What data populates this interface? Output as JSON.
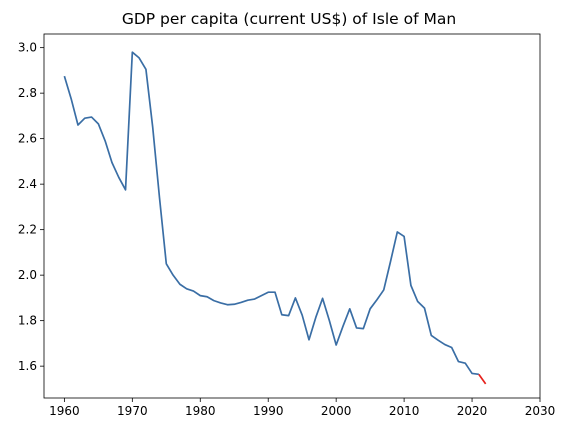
{
  "chart_data": {
    "type": "line",
    "title": "GDP per capita (current US$) of Isle of Man",
    "xlabel": "",
    "ylabel": "",
    "xlim": [
      1957,
      2030
    ],
    "ylim": [
      1.46,
      3.06
    ],
    "xticks": [
      1960,
      1970,
      1980,
      1990,
      2000,
      2010,
      2020,
      2030
    ],
    "yticks": [
      1.6,
      1.8,
      2.0,
      2.2,
      2.4,
      2.6,
      2.8,
      3.0
    ],
    "grid": false,
    "series": [
      {
        "color": "#3a6ea5",
        "x": [
          1960,
          1961,
          1962,
          1963,
          1964,
          1965,
          1966,
          1967,
          1968,
          1969,
          1970,
          1971,
          1972,
          1973,
          1974,
          1975,
          1976,
          1977,
          1978,
          1979,
          1980,
          1981,
          1982,
          1983,
          1984,
          1985,
          1986,
          1987,
          1988,
          1989,
          1990,
          1991,
          1992,
          1993,
          1994,
          1995,
          1996,
          1997,
          1998,
          1999,
          2000,
          2001,
          2002,
          2003,
          2004,
          2005,
          2006,
          2007,
          2008,
          2009,
          2010,
          2011,
          2012,
          2013,
          2014,
          2015,
          2016,
          2017,
          2018,
          2019,
          2020,
          2021
        ],
        "y": [
          2.875,
          2.775,
          2.66,
          2.69,
          2.695,
          2.665,
          2.59,
          2.495,
          2.43,
          2.375,
          2.98,
          2.955,
          2.905,
          2.65,
          2.34,
          2.05,
          2.0,
          1.96,
          1.94,
          1.93,
          1.91,
          1.905,
          1.888,
          1.878,
          1.87,
          1.872,
          1.88,
          1.89,
          1.895,
          1.91,
          1.925,
          1.925,
          1.826,
          1.822,
          1.9,
          1.824,
          1.716,
          1.814,
          1.898,
          1.8,
          1.693,
          1.775,
          1.852,
          1.768,
          1.765,
          1.852,
          1.892,
          1.935,
          2.06,
          2.19,
          2.17,
          1.955,
          1.884,
          1.855,
          1.735,
          1.714,
          1.695,
          1.682,
          1.62,
          1.613,
          1.568,
          1.564
        ]
      },
      {
        "color": "#e6211c",
        "x": [
          2021,
          2022
        ],
        "y": [
          1.564,
          1.522
        ]
      }
    ]
  }
}
